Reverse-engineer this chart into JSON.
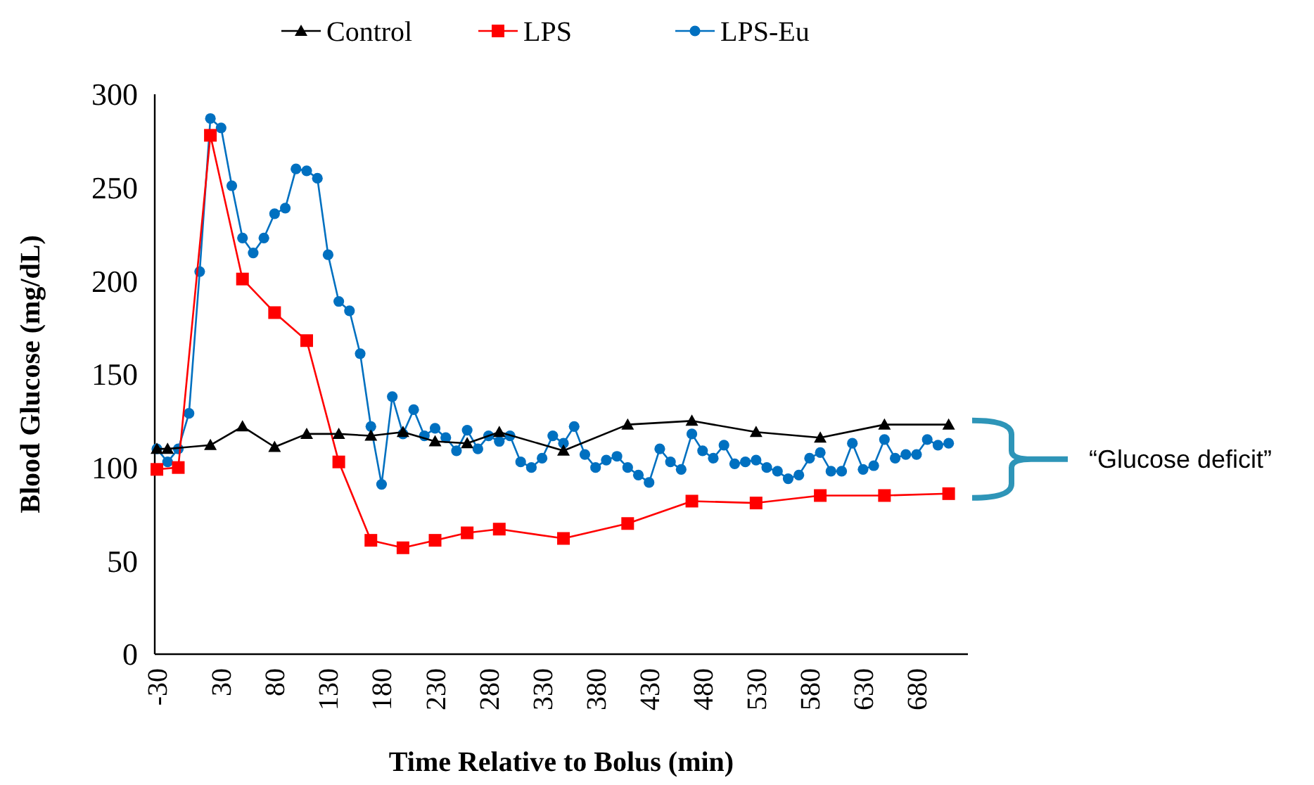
{
  "chart_data": {
    "type": "line",
    "xlabel": "Time Relative to Bolus (min)",
    "ylabel": "Blood Glucose (mg/dL)",
    "xlim": [
      -32,
      728
    ],
    "xticks": [
      -30,
      30,
      80,
      130,
      180,
      230,
      280,
      330,
      380,
      430,
      480,
      530,
      580,
      630,
      680
    ],
    "ylim": [
      0,
      300
    ],
    "yticks": [
      0,
      50,
      100,
      150,
      200,
      250,
      300
    ],
    "grid": false,
    "legend": "top",
    "annotations": [
      "“Glucose deficit”"
    ],
    "series": [
      {
        "name": "Control",
        "color": "#000000",
        "marker": "triangle",
        "x": [
          -30,
          -20,
          20,
          50,
          80,
          110,
          140,
          170,
          200,
          230,
          260,
          290,
          350,
          410,
          470,
          530,
          590,
          650,
          710
        ],
        "values": [
          110,
          110,
          112,
          122,
          111,
          118,
          118,
          117,
          119,
          114,
          113,
          119,
          109,
          123,
          125,
          119,
          116,
          123,
          123
        ]
      },
      {
        "name": "LPS",
        "color": "#ff0000",
        "marker": "square",
        "x": [
          -30,
          -10,
          20,
          50,
          80,
          110,
          140,
          170,
          200,
          230,
          260,
          290,
          350,
          410,
          470,
          530,
          590,
          650,
          710
        ],
        "values": [
          99,
          100,
          278,
          201,
          183,
          168,
          103,
          61,
          57,
          61,
          65,
          67,
          62,
          70,
          82,
          81,
          85,
          85,
          86
        ]
      },
      {
        "name": "LPS-Eu",
        "color": "#0070c0",
        "marker": "circle",
        "x": [
          -30,
          -20,
          -10,
          0,
          10,
          20,
          30,
          40,
          50,
          60,
          70,
          80,
          90,
          100,
          110,
          120,
          130,
          140,
          150,
          160,
          170,
          180,
          190,
          200,
          210,
          220,
          230,
          240,
          250,
          260,
          270,
          280,
          290,
          300,
          310,
          320,
          330,
          340,
          350,
          360,
          370,
          380,
          390,
          400,
          410,
          420,
          430,
          440,
          450,
          460,
          470,
          480,
          490,
          500,
          510,
          520,
          530,
          540,
          550,
          560,
          570,
          580,
          590,
          600,
          610,
          620,
          630,
          640,
          650,
          660,
          670,
          680,
          690,
          700,
          710
        ],
        "values": [
          110,
          103,
          110,
          129,
          205,
          287,
          282,
          251,
          223,
          215,
          223,
          236,
          239,
          260,
          259,
          255,
          214,
          189,
          184,
          161,
          122,
          91,
          138,
          118,
          131,
          117,
          121,
          116,
          109,
          120,
          110,
          117,
          114,
          117,
          103,
          100,
          105,
          117,
          113,
          122,
          107,
          100,
          104,
          106,
          100,
          96,
          92,
          110,
          103,
          99,
          118,
          109,
          105,
          112,
          102,
          103,
          104,
          100,
          98,
          94,
          96,
          105,
          108,
          98,
          98,
          113,
          99,
          101,
          115,
          105,
          107,
          107,
          115,
          112,
          113
        ]
      }
    ]
  }
}
